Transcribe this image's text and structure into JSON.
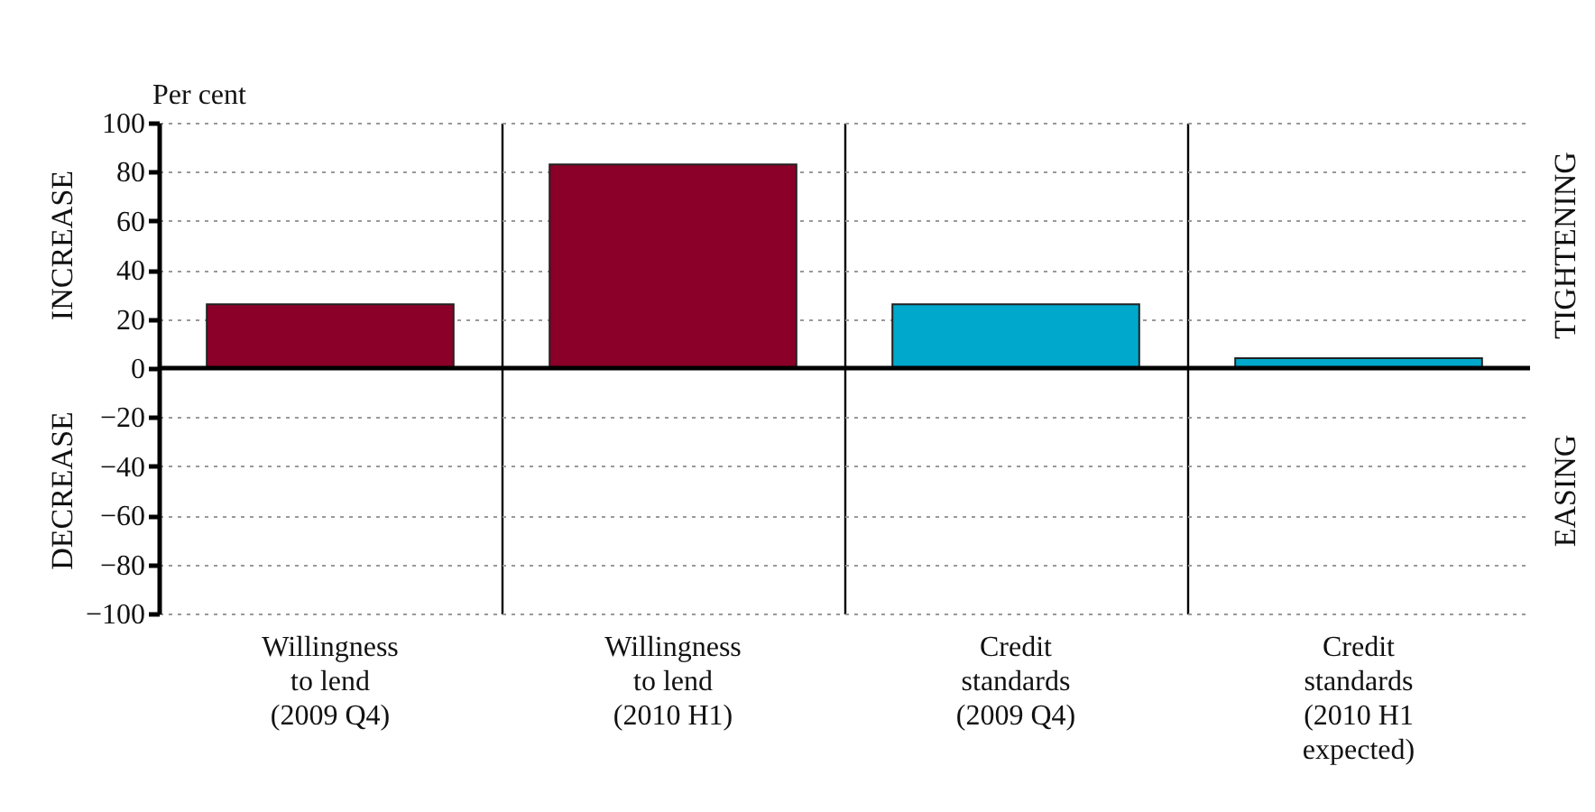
{
  "chart_data": {
    "type": "bar",
    "ylabel": "Per cent",
    "categories": [
      "Willingness to lend (2009 Q4)",
      "Willingness to lend (2010 H1)",
      "Credit standards (2009 Q4)",
      "Credit standards (2010 H1 expected)"
    ],
    "values": [
      26,
      83,
      26,
      4
    ],
    "colors": [
      "#8b0029",
      "#8b0029",
      "#00a8cc",
      "#00a8cc"
    ],
    "ylim": [
      -100,
      100
    ],
    "yticks": [
      -100,
      -80,
      -60,
      -40,
      -20,
      0,
      20,
      40,
      60,
      80,
      100
    ],
    "grid": true,
    "annotations": [
      "INCREASE",
      "DECREASE",
      "TIGHTENING",
      "EASING"
    ]
  }
}
